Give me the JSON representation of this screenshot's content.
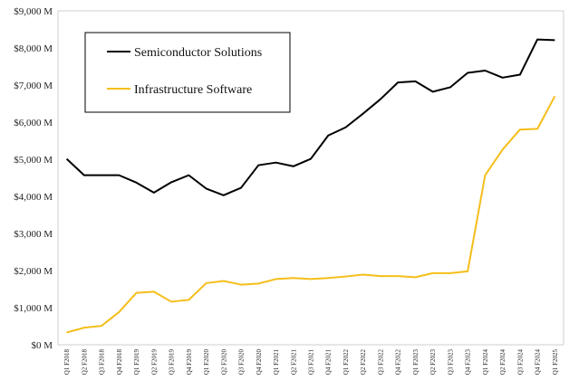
{
  "chart_data": {
    "type": "line",
    "title": "",
    "xlabel": "",
    "ylabel": "",
    "ylim": [
      0,
      9000
    ],
    "y_ticks": [
      {
        "value": 0,
        "label": "$0 M"
      },
      {
        "value": 1000,
        "label": "$1,000 M"
      },
      {
        "value": 2000,
        "label": "$2,000 M"
      },
      {
        "value": 3000,
        "label": "$3,000 M"
      },
      {
        "value": 4000,
        "label": "$4,000 M"
      },
      {
        "value": 5000,
        "label": "$5,000 M"
      },
      {
        "value": 6000,
        "label": "$6,000 M"
      },
      {
        "value": 7000,
        "label": "$7,000 M"
      },
      {
        "value": 8000,
        "label": "$8,000 M"
      },
      {
        "value": 9000,
        "label": "$9,000 M"
      }
    ],
    "grid": false,
    "legend_position": "top-left",
    "categories": [
      "Q1 F2018",
      "Q2 F2018",
      "Q3 F2018",
      "Q4 F2018",
      "Q1 F2019",
      "Q2 F2019",
      "Q3 F2019",
      "Q4 F2019",
      "Q1 F2020",
      "Q2 F2020",
      "Q3 F2020",
      "Q4 F2020",
      "Q1 F2021",
      "Q2 F2021",
      "Q3 F2021",
      "Q4 F2021",
      "Q1 F2022",
      "Q2 F2022",
      "Q3 F2022",
      "Q4 F2022",
      "Q1 F2023",
      "Q2 F2023",
      "Q3 F2023",
      "Q4 F2023",
      "Q1 F2024",
      "Q2 F2024",
      "Q3 F2024",
      "Q4 F2024",
      "Q1 F2025"
    ],
    "series": [
      {
        "name": "Semiconductor Solutions",
        "color": "#000000",
        "values": [
          5010,
          4570,
          4570,
          4570,
          4370,
          4100,
          4380,
          4570,
          4210,
          4030,
          4230,
          4840,
          4910,
          4810,
          5010,
          5640,
          5860,
          6230,
          6620,
          7070,
          7100,
          6820,
          6940,
          7330,
          7390,
          7200,
          7280,
          8230,
          8210
        ]
      },
      {
        "name": "Infrastructure Software",
        "color": "#F5BE1A",
        "values": [
          330,
          460,
          510,
          880,
          1400,
          1430,
          1160,
          1210,
          1660,
          1720,
          1620,
          1650,
          1770,
          1800,
          1770,
          1800,
          1840,
          1890,
          1850,
          1850,
          1820,
          1930,
          1930,
          1980,
          4570,
          5260,
          5800,
          5820,
          6700
        ]
      }
    ]
  }
}
